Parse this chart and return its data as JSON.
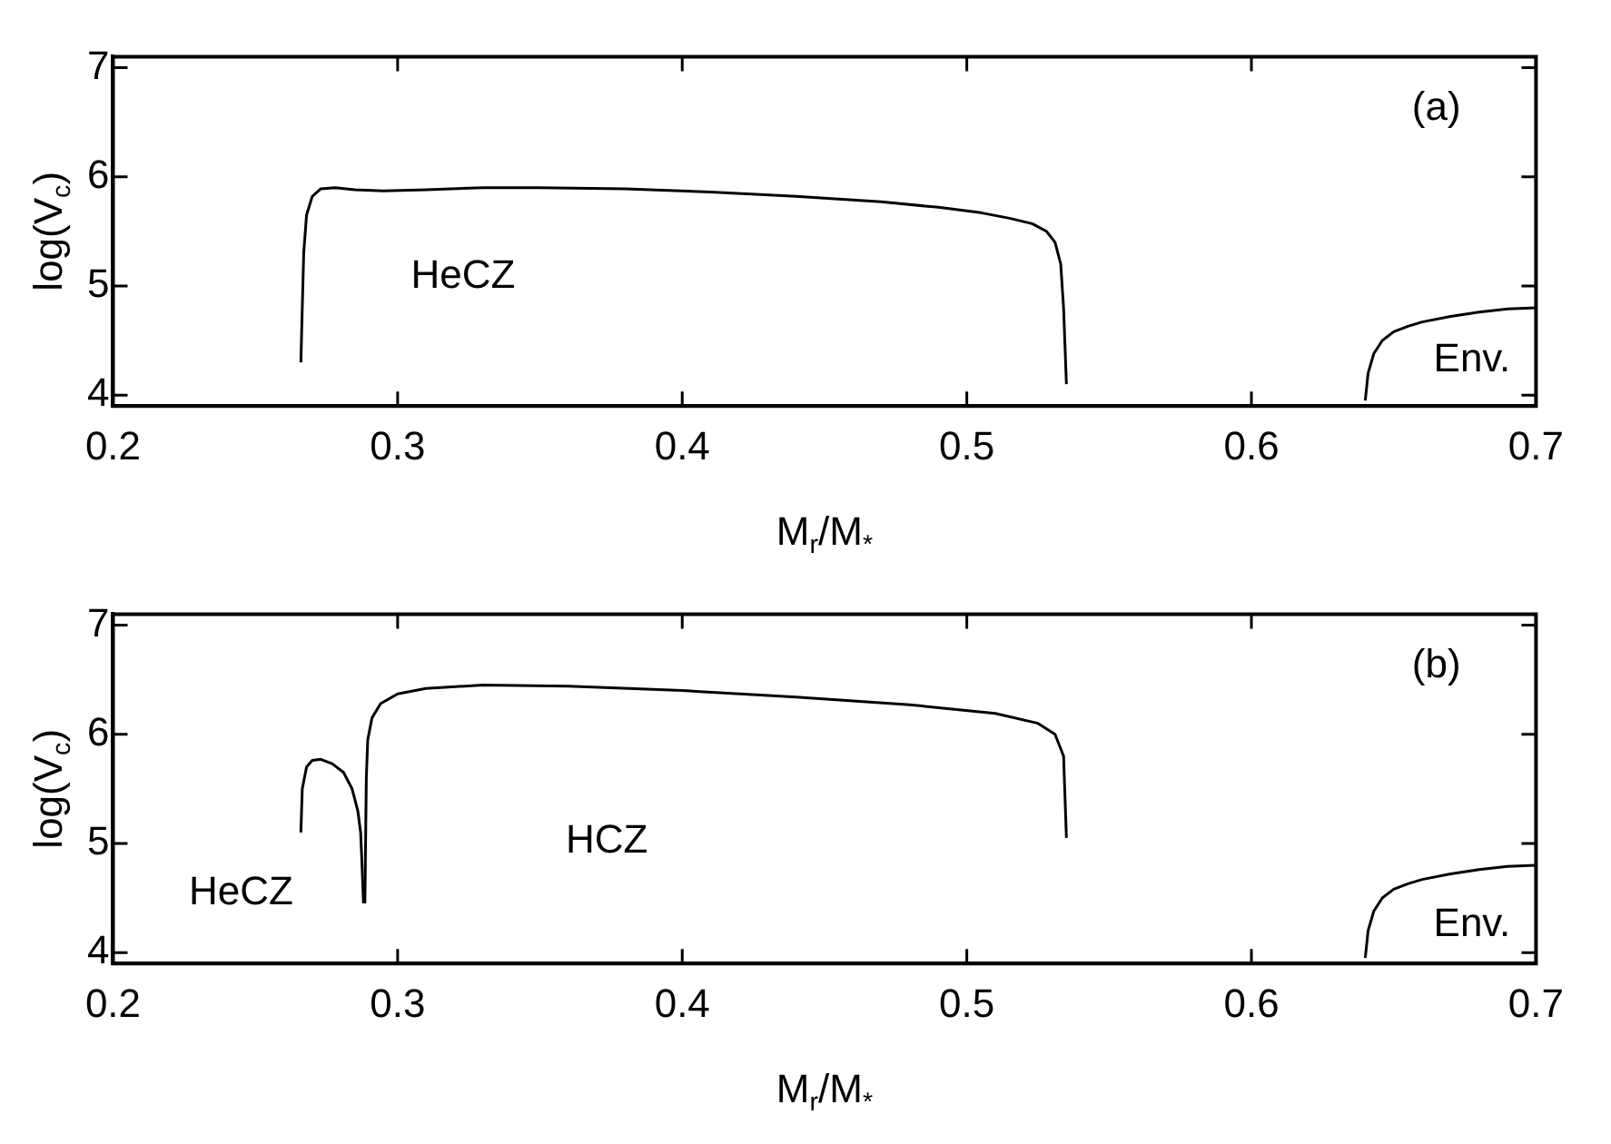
{
  "chart_data": [
    {
      "type": "line",
      "xlabel": "M$_{r}$/M$_{*}$",
      "ylabel": "log(V$_{c}$)",
      "xlim": [
        0.2,
        0.7
      ],
      "xticks": [
        0.2,
        0.3,
        0.4,
        0.5,
        0.6,
        0.7
      ],
      "ylim": [
        3.9,
        7.1
      ],
      "yticks": [
        4,
        5,
        6,
        7
      ],
      "grid": false,
      "legend": false,
      "marker": "none",
      "line_style": "solid",
      "annotations": [
        "(a)",
        "HeCZ",
        "Env."
      ],
      "series": [
        {
          "color": "#000000",
          "x": [
            0.266,
            0.267,
            0.268,
            0.27,
            0.273,
            0.278,
            0.285,
            0.295,
            0.31,
            0.33,
            0.35,
            0.38,
            0.41,
            0.44,
            0.47,
            0.49,
            0.505,
            0.515,
            0.523,
            0.528,
            0.531,
            0.533,
            0.534,
            0.535
          ],
          "values": [
            4.3,
            5.3,
            5.65,
            5.82,
            5.89,
            5.9,
            5.88,
            5.87,
            5.88,
            5.9,
            5.9,
            5.89,
            5.86,
            5.82,
            5.77,
            5.72,
            5.67,
            5.62,
            5.57,
            5.5,
            5.4,
            5.2,
            4.8,
            4.1
          ]
        },
        {
          "color": "#000000",
          "x": [
            0.64,
            0.641,
            0.643,
            0.646,
            0.65,
            0.655,
            0.66,
            0.67,
            0.68,
            0.69,
            0.7
          ],
          "values": [
            3.95,
            4.2,
            4.38,
            4.5,
            4.58,
            4.63,
            4.67,
            4.72,
            4.76,
            4.79,
            4.8
          ]
        }
      ]
    },
    {
      "type": "line",
      "xlabel": "M$_{r}$/M$_{*}$",
      "ylabel": "log(V$_{c}$)",
      "xlim": [
        0.2,
        0.7
      ],
      "xticks": [
        0.2,
        0.3,
        0.4,
        0.5,
        0.6,
        0.7
      ],
      "ylim": [
        3.9,
        7.1
      ],
      "yticks": [
        4,
        5,
        6,
        7
      ],
      "grid": false,
      "legend": false,
      "marker": "none",
      "line_style": "solid",
      "annotations": [
        "(b)",
        "HeCZ",
        "HCZ",
        "Env."
      ],
      "series": [
        {
          "color": "#000000",
          "x": [
            0.266,
            0.2665,
            0.268,
            0.27,
            0.273,
            0.277,
            0.281,
            0.284,
            0.286,
            0.287,
            0.2875,
            0.288
          ],
          "values": [
            5.1,
            5.5,
            5.7,
            5.76,
            5.77,
            5.73,
            5.65,
            5.5,
            5.3,
            5.1,
            4.8,
            4.45
          ]
        },
        {
          "color": "#000000",
          "x": [
            0.2885,
            0.289,
            0.2895,
            0.291,
            0.294,
            0.3,
            0.31,
            0.33,
            0.36,
            0.4,
            0.44,
            0.48,
            0.51,
            0.525,
            0.531,
            0.534,
            0.535
          ],
          "values": [
            4.45,
            5.6,
            5.95,
            6.15,
            6.28,
            6.37,
            6.42,
            6.45,
            6.44,
            6.4,
            6.34,
            6.27,
            6.19,
            6.1,
            6.0,
            5.8,
            5.05
          ]
        },
        {
          "color": "#000000",
          "x": [
            0.64,
            0.641,
            0.643,
            0.646,
            0.65,
            0.655,
            0.66,
            0.67,
            0.68,
            0.69,
            0.7
          ],
          "values": [
            3.95,
            4.2,
            4.38,
            4.5,
            4.58,
            4.63,
            4.67,
            4.72,
            4.76,
            4.79,
            4.8
          ]
        }
      ]
    }
  ]
}
